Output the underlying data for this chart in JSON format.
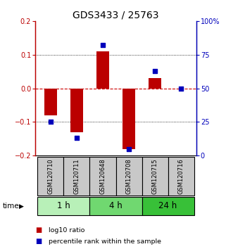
{
  "title": "GDS3433 / 25763",
  "samples": [
    "GSM120710",
    "GSM120711",
    "GSM120648",
    "GSM120708",
    "GSM120715",
    "GSM120716"
  ],
  "log10_ratio": [
    -0.08,
    -0.13,
    0.11,
    -0.18,
    0.03,
    0.0
  ],
  "percentile_rank": [
    25,
    13,
    82,
    5,
    63,
    50
  ],
  "groups": [
    {
      "label": "1 h",
      "indices": [
        0,
        1
      ],
      "color": "#b8f0b8"
    },
    {
      "label": "4 h",
      "indices": [
        2,
        3
      ],
      "color": "#70d870"
    },
    {
      "label": "24 h",
      "indices": [
        4,
        5
      ],
      "color": "#38c038"
    }
  ],
  "ylim_left": [
    -0.2,
    0.2
  ],
  "ylim_right": [
    0,
    100
  ],
  "left_yticks": [
    -0.2,
    -0.1,
    0.0,
    0.1,
    0.2
  ],
  "right_yticks": [
    0,
    25,
    50,
    75,
    100
  ],
  "right_yticklabels": [
    "0",
    "25",
    "50",
    "75",
    "100%"
  ],
  "bar_color": "#bb0000",
  "dot_color": "#0000bb",
  "zero_line_color": "#cc0000",
  "grid_color": "#000000",
  "sample_box_color": "#c8c8c8",
  "legend_bar_label": "log10 ratio",
  "legend_dot_label": "percentile rank within the sample",
  "time_label": "time",
  "title_fontsize": 10,
  "tick_fontsize": 7,
  "label_fontsize": 7.5
}
